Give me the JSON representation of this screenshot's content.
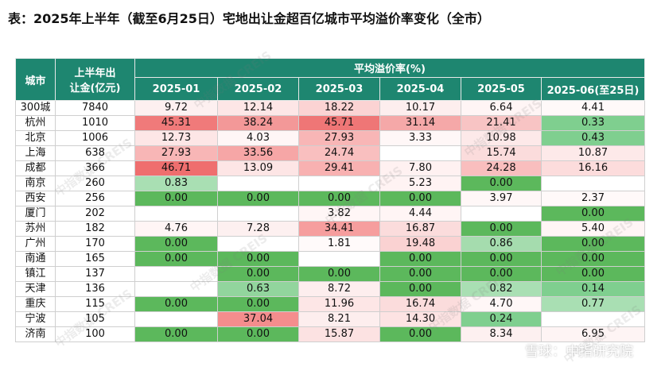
{
  "title": "表：2025年上半年（截至6月25日）宅地出让金超百亿城市平均溢价率变化（全市）",
  "header": {
    "city_label": "城市",
    "fee_label_line1": "上半年出",
    "fee_label_line2": "让金(亿元)",
    "group_label": "平均溢价率(%)",
    "months": [
      "2025-01",
      "2025-02",
      "2025-03",
      "2025-04",
      "2025-05",
      "2025-06(至25日)"
    ]
  },
  "rows": [
    {
      "city": "300城",
      "fee": "7840",
      "vals": [
        "9.72",
        "12.14",
        "18.22",
        "10.17",
        "6.64",
        "4.41"
      ]
    },
    {
      "city": "杭州",
      "fee": "1010",
      "vals": [
        "45.31",
        "38.24",
        "45.71",
        "31.14",
        "21.41",
        "0.33"
      ]
    },
    {
      "city": "北京",
      "fee": "1006",
      "vals": [
        "12.73",
        "4.03",
        "27.93",
        "3.33",
        "10.98",
        "0.43"
      ]
    },
    {
      "city": "上海",
      "fee": "638",
      "vals": [
        "27.93",
        "33.56",
        "24.74",
        "",
        "15.74",
        "10.87"
      ]
    },
    {
      "city": "成都",
      "fee": "366",
      "vals": [
        "46.71",
        "13.09",
        "29.41",
        "7.80",
        "24.28",
        "16.16"
      ]
    },
    {
      "city": "南京",
      "fee": "260",
      "vals": [
        "0.83",
        "",
        "",
        "5.23",
        "0.00",
        ""
      ]
    },
    {
      "city": "西安",
      "fee": "256",
      "vals": [
        "0.00",
        "0.00",
        "0.00",
        "0.00",
        "3.97",
        "2.37"
      ]
    },
    {
      "city": "厦门",
      "fee": "202",
      "vals": [
        "",
        "",
        "3.82",
        "4.44",
        "",
        "0.00"
      ]
    },
    {
      "city": "苏州",
      "fee": "182",
      "vals": [
        "4.76",
        "7.28",
        "34.41",
        "16.87",
        "0.00",
        "5.40"
      ]
    },
    {
      "city": "广州",
      "fee": "170",
      "vals": [
        "0.00",
        "",
        "1.81",
        "19.48",
        "0.86",
        "0.00"
      ]
    },
    {
      "city": "南通",
      "fee": "165",
      "vals": [
        "0.00",
        "0.00",
        "",
        "0.00",
        "0.00",
        "0.00"
      ]
    },
    {
      "city": "镇江",
      "fee": "137",
      "vals": [
        "",
        "0.00",
        "0.00",
        "0.00",
        "0.00",
        "0.00"
      ]
    },
    {
      "city": "天津",
      "fee": "136",
      "vals": [
        "",
        "0.63",
        "8.72",
        "0.00",
        "0.82",
        "0.14"
      ]
    },
    {
      "city": "重庆",
      "fee": "115",
      "vals": [
        "0.00",
        "0.00",
        "11.96",
        "16.74",
        "4.70",
        "0.77"
      ]
    },
    {
      "city": "宁波",
      "fee": "105",
      "vals": [
        "",
        "37.04",
        "8.21",
        "14.30",
        "0.24",
        ""
      ]
    },
    {
      "city": "济南",
      "fee": "100",
      "vals": [
        "0.00",
        "0.00",
        "15.87",
        "0.00",
        "8.34",
        "6.95"
      ]
    }
  ],
  "cell_colors": [
    [
      "#fdf0f0",
      "#fde6e6",
      "#fbd3d3",
      "#fdeeee",
      "#fff5f5",
      "#fff9f9"
    ],
    [
      "#f07a7a",
      "#f39898",
      "#ef7676",
      "#f5a8a8",
      "#f8c4c4",
      "#7fcf8f"
    ],
    [
      "#fde6e6",
      "#fff6f6",
      "#f8b6b6",
      "#fff7f7",
      "#fde9e9",
      "#7fcf8f"
    ],
    [
      "#f8b6b6",
      "#f6a6a6",
      "#f9bfbf",
      "#ffffff",
      "#fbdcdc",
      "#fde9e9"
    ],
    [
      "#ef6e6e",
      "#fde5e5",
      "#f8b1b1",
      "#fff1f1",
      "#f9bebe",
      "#fcdcdc"
    ],
    [
      "#a9dfb3",
      "#ffffff",
      "#ffffff",
      "#fff3f3",
      "#5cb85c",
      "#ffffff"
    ],
    [
      "#5cb85c",
      "#5cb85c",
      "#5cb85c",
      "#5cb85c",
      "#fff7f7",
      "#fff9f9"
    ],
    [
      "#ffffff",
      "#ffffff",
      "#fff6f6",
      "#fff5f5",
      "#ffffff",
      "#5cb85c"
    ],
    [
      "#fff5f5",
      "#fdf0f0",
      "#f69e9e",
      "#fbdcdc",
      "#5cb85c",
      "#fff5f5"
    ],
    [
      "#5cb85c",
      "#ffffff",
      "#fffafa",
      "#fad2d2",
      "#a5dcae",
      "#5cb85c"
    ],
    [
      "#5cb85c",
      "#5cb85c",
      "#ffffff",
      "#5cb85c",
      "#5cb85c",
      "#5cb85c"
    ],
    [
      "#ffffff",
      "#5cb85c",
      "#5cb85c",
      "#5cb85c",
      "#5cb85c",
      "#5cb85c"
    ],
    [
      "#ffffff",
      "#92d59d",
      "#fdeeee",
      "#5cb85c",
      "#a9dfb3",
      "#7fcf8f"
    ],
    [
      "#5cb85c",
      "#5cb85c",
      "#fde6e6",
      "#fbdcdc",
      "#fff7f7",
      "#a9dfb3"
    ],
    [
      "#ffffff",
      "#f48d8d",
      "#fdeeee",
      "#fde3e3",
      "#7fcf8f",
      "#ffffff"
    ],
    [
      "#5cb85c",
      "#5cb85c",
      "#fce2e2",
      "#5cb85c",
      "#fdf0f0",
      "#fef4f4"
    ]
  ],
  "watermarks": [
    "中指数据 CREIS",
    "雪球：中指研究院"
  ]
}
